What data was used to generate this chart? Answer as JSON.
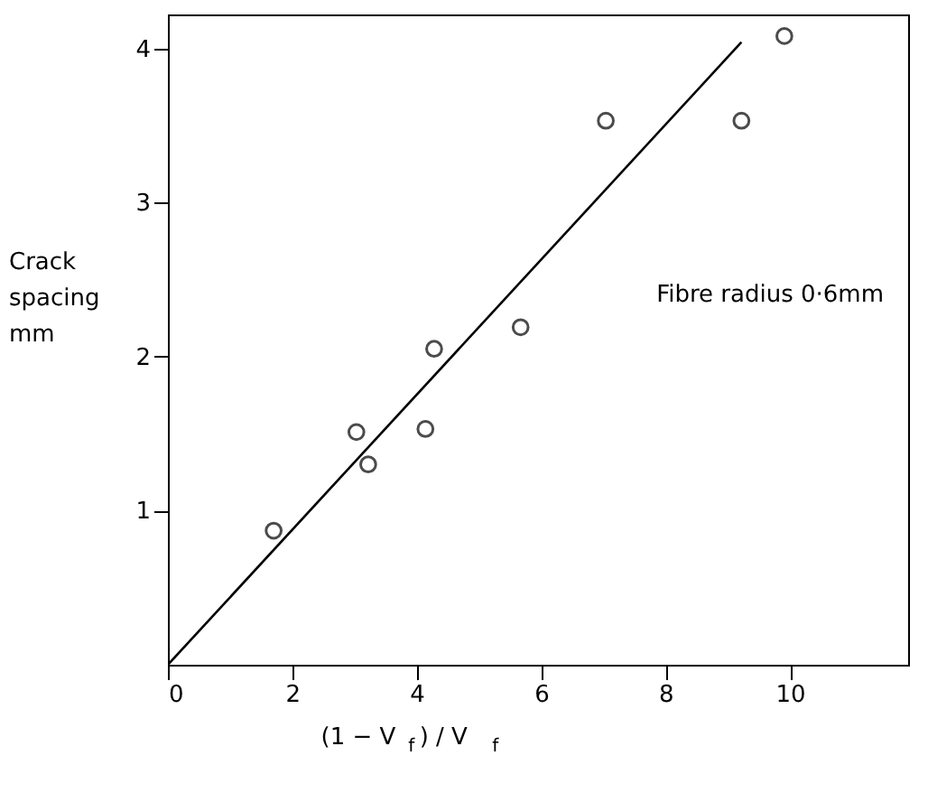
{
  "chart_data": {
    "type": "scatter",
    "xlabel": "(1 − V$_{f}$) / V$_{f}$",
    "ylabel": "Crack spacing mm",
    "annotations": [
      "Fibre radius 0·6mm"
    ],
    "xlim": [
      0,
      11.9
    ],
    "ylim": [
      0,
      4.22
    ],
    "xticks": [
      0,
      2,
      4,
      6,
      8,
      10
    ],
    "yticks": [
      1,
      2,
      3,
      4
    ],
    "grid": false,
    "series": [
      {
        "color": "#000000",
        "marker": "circle",
        "x": [
          1.7,
          3.03,
          3.22,
          4.14,
          4.28,
          5.67,
          7.04,
          9.22,
          9.91
        ],
        "values": [
          0.87,
          1.51,
          1.3,
          1.53,
          2.05,
          2.19,
          3.53,
          3.53,
          4.08
        ]
      },
      {
        "type": "line",
        "color": "#000000",
        "line_style": "solid",
        "marker": "none",
        "x": [
          0,
          9.22
        ],
        "values": [
          0,
          4.04
        ]
      }
    ]
  }
}
